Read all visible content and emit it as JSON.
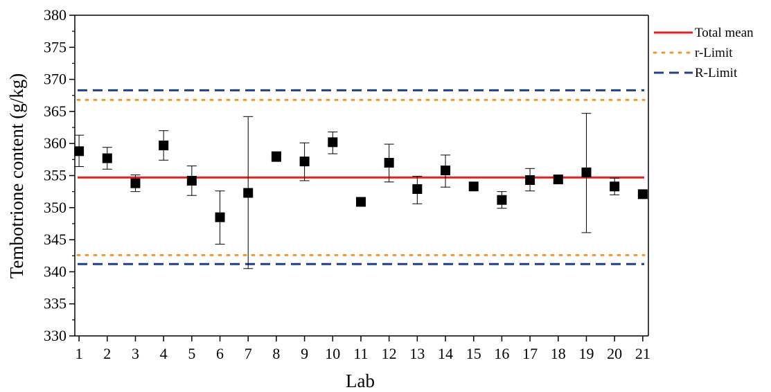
{
  "chart_data": {
    "type": "scatter",
    "title": "",
    "xlabel": "Lab",
    "ylabel": "Tembotrione content (g/kg)",
    "xlim": [
      0.85,
      21.2
    ],
    "ylim": [
      330,
      380
    ],
    "x_ticks": [
      "1",
      "2",
      "3",
      "4",
      "5",
      "6",
      "7",
      "8",
      "9",
      "10",
      "11",
      "12",
      "13",
      "14",
      "15",
      "16",
      "17",
      "18",
      "19",
      "20",
      "21"
    ],
    "y_ticks": [
      "330",
      "335",
      "340",
      "345",
      "350",
      "355",
      "360",
      "365",
      "370",
      "375",
      "380"
    ],
    "grid": false,
    "legend_position": "outside-right",
    "series": [
      {
        "kind": "points",
        "x": [
          1,
          2,
          3,
          4,
          5,
          6,
          7,
          8,
          9,
          10,
          11,
          12,
          13,
          14,
          15,
          16,
          17,
          18,
          19,
          20,
          21
        ],
        "y": [
          358.8,
          357.7,
          353.8,
          359.7,
          354.2,
          348.5,
          352.3,
          358.0,
          357.2,
          360.2,
          350.9,
          357.0,
          352.9,
          355.8,
          353.3,
          351.2,
          354.3,
          354.4,
          355.5,
          353.3,
          352.1
        ],
        "error_low": [
          356.4,
          356.0,
          352.5,
          357.4,
          351.9,
          344.3,
          340.5,
          357.2,
          354.2,
          358.4,
          350.9,
          354.0,
          350.6,
          353.2,
          353.3,
          349.9,
          352.6,
          353.9,
          346.1,
          352.0,
          352.1
        ],
        "error_high": [
          361.3,
          359.4,
          355.1,
          362.0,
          356.5,
          352.6,
          364.2,
          358.7,
          360.1,
          361.8,
          350.9,
          359.9,
          354.9,
          358.2,
          353.3,
          352.5,
          356.1,
          354.9,
          364.7,
          354.6,
          352.1
        ],
        "color": "#000000"
      },
      {
        "name": "Total mean",
        "kind": "hline",
        "y": 354.7,
        "color": "#ee1c1c",
        "style": "solid"
      },
      {
        "name": "r-Limit",
        "kind": "hline",
        "y": [
          342.6,
          366.8
        ],
        "color": "#f5962b",
        "style": "dotted"
      },
      {
        "name": "R-Limit",
        "kind": "hline",
        "y": [
          341.2,
          368.3
        ],
        "color": "#1f3f8f",
        "style": "dashed"
      }
    ]
  }
}
